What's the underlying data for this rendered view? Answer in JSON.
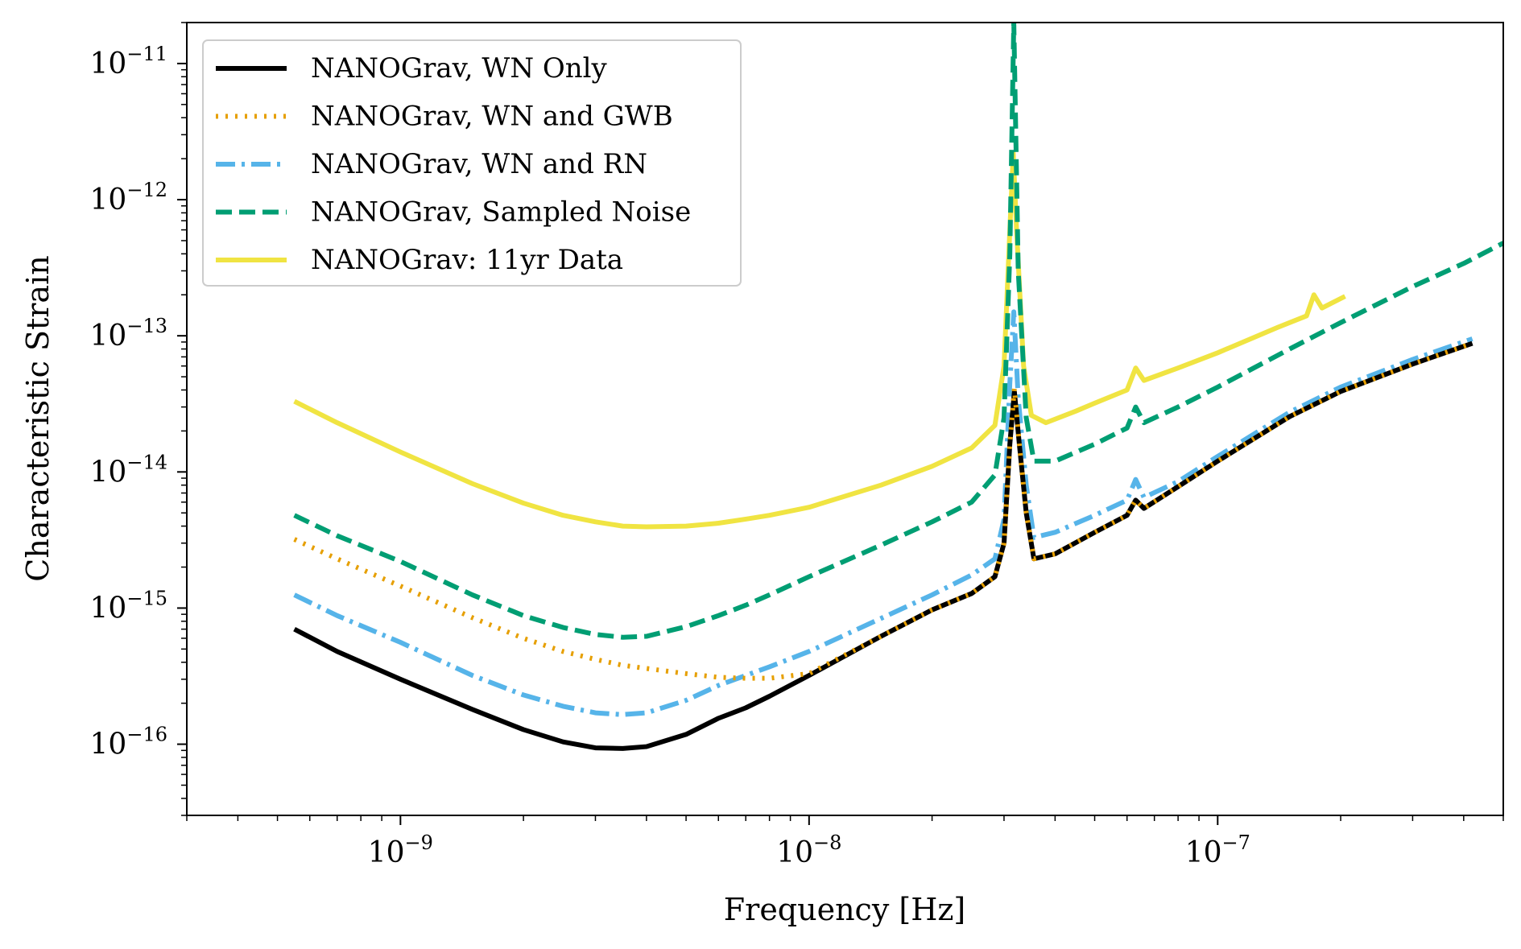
{
  "chart_data": {
    "type": "line",
    "xlabel": "Frequency [Hz]",
    "ylabel": "Characteristic Strain",
    "x_scale": "log",
    "y_scale": "log",
    "xlim": [
      3e-10,
      5e-07
    ],
    "ylim": [
      3e-17,
      2e-11
    ],
    "x_ticks": [
      {
        "value": 1e-09,
        "base": "10",
        "exp": "−9"
      },
      {
        "value": 1e-08,
        "base": "10",
        "exp": "−8"
      },
      {
        "value": 1e-07,
        "base": "10",
        "exp": "−7"
      }
    ],
    "y_ticks": [
      {
        "value": 1e-16,
        "base": "10",
        "exp": "−16"
      },
      {
        "value": 1e-15,
        "base": "10",
        "exp": "−15"
      },
      {
        "value": 1e-14,
        "base": "10",
        "exp": "−14"
      },
      {
        "value": 1e-13,
        "base": "10",
        "exp": "−13"
      },
      {
        "value": 1e-12,
        "base": "10",
        "exp": "−12"
      },
      {
        "value": 1e-11,
        "base": "10",
        "exp": "−11"
      }
    ],
    "grid": false,
    "legend_position": "top-left",
    "series": [
      {
        "name": "NANOGrav, WN Only",
        "color": "#000000",
        "style": "solid",
        "points": [
          [
            5.5e-10,
            7e-16
          ],
          [
            7e-10,
            4.8e-16
          ],
          [
            1e-09,
            3e-16
          ],
          [
            1.5e-09,
            1.8e-16
          ],
          [
            2e-09,
            1.28e-16
          ],
          [
            2.5e-09,
            1.04e-16
          ],
          [
            3e-09,
            9.4e-17
          ],
          [
            3.5e-09,
            9.3e-17
          ],
          [
            4e-09,
            9.6e-17
          ],
          [
            5e-09,
            1.18e-16
          ],
          [
            6e-09,
            1.55e-16
          ],
          [
            7e-09,
            1.85e-16
          ],
          [
            8e-09,
            2.25e-16
          ],
          [
            1e-08,
            3.2e-16
          ],
          [
            1.5e-08,
            6.2e-16
          ],
          [
            2e-08,
            9.7e-16
          ],
          [
            2.5e-08,
            1.28e-15
          ],
          [
            2.85e-08,
            1.7e-15
          ],
          [
            3e-08,
            3e-15
          ],
          [
            3.1e-08,
            1.6e-14
          ],
          [
            3.18e-08,
            3.9e-14
          ],
          [
            3.27e-08,
            1.6e-14
          ],
          [
            3.4e-08,
            5e-15
          ],
          [
            3.55e-08,
            2.3e-15
          ],
          [
            4e-08,
            2.5e-15
          ],
          [
            5e-08,
            3.6e-15
          ],
          [
            6e-08,
            4.8e-15
          ],
          [
            6.3e-08,
            6.2e-15
          ],
          [
            6.6e-08,
            5.4e-15
          ],
          [
            8e-08,
            7.8e-15
          ],
          [
            1e-07,
            1.2e-14
          ],
          [
            1.5e-07,
            2.55e-14
          ],
          [
            2e-07,
            3.9e-14
          ],
          [
            3e-07,
            6.2e-14
          ],
          [
            4.2e-07,
            8.8e-14
          ]
        ]
      },
      {
        "name": "NANOGrav, WN and GWB",
        "color": "#e69f00",
        "style": "dotted",
        "points": [
          [
            5.5e-10,
            3.2e-15
          ],
          [
            7e-10,
            2.3e-15
          ],
          [
            1e-09,
            1.45e-15
          ],
          [
            1.5e-09,
            8.5e-16
          ],
          [
            2e-09,
            6e-16
          ],
          [
            2.5e-09,
            4.8e-16
          ],
          [
            3e-09,
            4.2e-16
          ],
          [
            3.5e-09,
            3.8e-16
          ],
          [
            4e-09,
            3.6e-16
          ],
          [
            5e-09,
            3.3e-16
          ],
          [
            6e-09,
            3.1e-16
          ],
          [
            7e-09,
            3.05e-16
          ],
          [
            8e-09,
            3.05e-16
          ],
          [
            1e-08,
            3.3e-16
          ],
          [
            1.5e-08,
            6.2e-16
          ],
          [
            2e-08,
            9.7e-16
          ],
          [
            2.5e-08,
            1.28e-15
          ],
          [
            2.85e-08,
            1.7e-15
          ],
          [
            3e-08,
            3e-15
          ],
          [
            3.1e-08,
            1.6e-14
          ],
          [
            3.18e-08,
            4.1e-14
          ],
          [
            3.27e-08,
            1.6e-14
          ],
          [
            3.4e-08,
            5e-15
          ],
          [
            3.55e-08,
            2.3e-15
          ],
          [
            4e-08,
            2.5e-15
          ],
          [
            5e-08,
            3.6e-15
          ],
          [
            6e-08,
            4.8e-15
          ],
          [
            6.3e-08,
            6.2e-15
          ],
          [
            6.6e-08,
            5.4e-15
          ],
          [
            8e-08,
            7.8e-15
          ],
          [
            1e-07,
            1.2e-14
          ],
          [
            1.5e-07,
            2.55e-14
          ],
          [
            2e-07,
            3.9e-14
          ],
          [
            3e-07,
            6.2e-14
          ],
          [
            4.2e-07,
            8.8e-14
          ]
        ]
      },
      {
        "name": "NANOGrav, WN and RN",
        "color": "#56b4e9",
        "style": "dashdot",
        "points": [
          [
            5.5e-10,
            1.25e-15
          ],
          [
            7e-10,
            8.8e-16
          ],
          [
            1e-09,
            5.6e-16
          ],
          [
            1.5e-09,
            3.2e-16
          ],
          [
            2e-09,
            2.3e-16
          ],
          [
            2.5e-09,
            1.9e-16
          ],
          [
            3e-09,
            1.7e-16
          ],
          [
            3.5e-09,
            1.65e-16
          ],
          [
            4e-09,
            1.7e-16
          ],
          [
            5e-09,
            2.1e-16
          ],
          [
            6e-09,
            2.7e-16
          ],
          [
            7e-09,
            3.2e-16
          ],
          [
            8e-09,
            3.7e-16
          ],
          [
            1e-08,
            4.8e-16
          ],
          [
            1.5e-08,
            8.4e-16
          ],
          [
            2e-08,
            1.25e-15
          ],
          [
            2.5e-08,
            1.75e-15
          ],
          [
            2.85e-08,
            2.3e-15
          ],
          [
            3e-08,
            4.5e-15
          ],
          [
            3.1e-08,
            4.5e-14
          ],
          [
            3.17e-08,
            1.5e-13
          ],
          [
            3.25e-08,
            3.5e-14
          ],
          [
            3.4e-08,
            8e-15
          ],
          [
            3.55e-08,
            3.3e-15
          ],
          [
            4e-08,
            3.6e-15
          ],
          [
            5e-08,
            4.8e-15
          ],
          [
            6e-08,
            6.2e-15
          ],
          [
            6.3e-08,
            8.8e-15
          ],
          [
            6.6e-08,
            6.5e-15
          ],
          [
            8e-08,
            8.5e-15
          ],
          [
            1e-07,
            1.3e-14
          ],
          [
            1.5e-07,
            2.75e-14
          ],
          [
            2e-07,
            4.2e-14
          ],
          [
            3e-07,
            6.7e-14
          ],
          [
            4.2e-07,
            9.5e-14
          ]
        ]
      },
      {
        "name": "NANOGrav, Sampled Noise",
        "color": "#009e73",
        "style": "dashed",
        "points": [
          [
            5.5e-10,
            4.8e-15
          ],
          [
            7e-10,
            3.4e-15
          ],
          [
            1e-09,
            2.2e-15
          ],
          [
            1.5e-09,
            1.25e-15
          ],
          [
            2e-09,
            8.8e-16
          ],
          [
            2.5e-09,
            7.2e-16
          ],
          [
            3e-09,
            6.4e-16
          ],
          [
            3.5e-09,
            6.1e-16
          ],
          [
            4e-09,
            6.2e-16
          ],
          [
            5e-09,
            7.3e-16
          ],
          [
            6e-09,
            8.8e-16
          ],
          [
            7e-09,
            1.05e-15
          ],
          [
            8e-09,
            1.25e-15
          ],
          [
            1e-08,
            1.7e-15
          ],
          [
            1.5e-08,
            2.9e-15
          ],
          [
            2e-08,
            4.3e-15
          ],
          [
            2.5e-08,
            6e-15
          ],
          [
            2.85e-08,
            9.5e-15
          ],
          [
            3e-08,
            2.5e-14
          ],
          [
            3.1e-08,
            4e-13
          ],
          [
            3.17e-08,
            2e-11
          ],
          [
            3.25e-08,
            3e-13
          ],
          [
            3.4e-08,
            2.5e-14
          ],
          [
            3.55e-08,
            1.2e-14
          ],
          [
            4e-08,
            1.2e-14
          ],
          [
            5e-08,
            1.6e-14
          ],
          [
            6e-08,
            2.1e-14
          ],
          [
            6.3e-08,
            3e-14
          ],
          [
            6.6e-08,
            2.3e-14
          ],
          [
            8e-08,
            3e-14
          ],
          [
            1e-07,
            4.2e-14
          ],
          [
            1.5e-07,
            8e-14
          ],
          [
            2e-07,
            1.25e-13
          ],
          [
            3e-07,
            2.3e-13
          ],
          [
            4e-07,
            3.4e-13
          ],
          [
            5e-07,
            4.8e-13
          ]
        ]
      },
      {
        "name": "NANOGrav: 11yr Data",
        "color": "#f0e442",
        "style": "solid",
        "points": [
          [
            5.5e-10,
            3.3e-14
          ],
          [
            7e-10,
            2.3e-14
          ],
          [
            1e-09,
            1.4e-14
          ],
          [
            1.5e-09,
            8.2e-15
          ],
          [
            2e-09,
            5.9e-15
          ],
          [
            2.5e-09,
            4.8e-15
          ],
          [
            3e-09,
            4.3e-15
          ],
          [
            3.5e-09,
            4e-15
          ],
          [
            4e-09,
            3.95e-15
          ],
          [
            5e-09,
            4e-15
          ],
          [
            6e-09,
            4.2e-15
          ],
          [
            7e-09,
            4.5e-15
          ],
          [
            8e-09,
            4.8e-15
          ],
          [
            1e-08,
            5.5e-15
          ],
          [
            1.5e-08,
            8e-15
          ],
          [
            2e-08,
            1.1e-14
          ],
          [
            2.5e-08,
            1.5e-14
          ],
          [
            2.85e-08,
            2.2e-14
          ],
          [
            3e-08,
            6e-14
          ],
          [
            3.1e-08,
            6e-13
          ],
          [
            3.16e-08,
            2.2e-12
          ],
          [
            3.22e-08,
            6e-13
          ],
          [
            3.35e-08,
            6e-14
          ],
          [
            3.5e-08,
            2.6e-14
          ],
          [
            3.8e-08,
            2.3e-14
          ],
          [
            4.5e-08,
            2.8e-14
          ],
          [
            5e-08,
            3.2e-14
          ],
          [
            6e-08,
            4e-14
          ],
          [
            6.3e-08,
            5.8e-14
          ],
          [
            6.6e-08,
            4.7e-14
          ],
          [
            8e-08,
            5.8e-14
          ],
          [
            1e-07,
            7.5e-14
          ],
          [
            1.4e-07,
            1.15e-13
          ],
          [
            1.65e-07,
            1.4e-13
          ],
          [
            1.72e-07,
            2e-13
          ],
          [
            1.8e-07,
            1.6e-13
          ],
          [
            2.05e-07,
            1.95e-13
          ]
        ]
      }
    ]
  }
}
